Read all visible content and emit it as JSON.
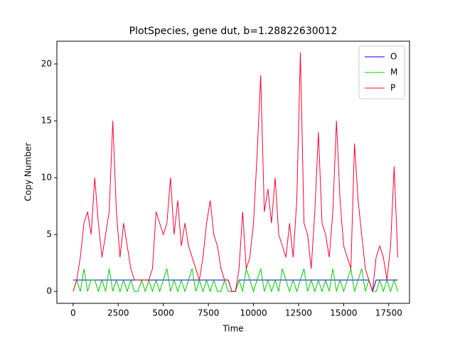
{
  "chart_data": {
    "type": "line",
    "title": "PlotSpecies, gene dut, b=1.28822630012",
    "x_label": "Time",
    "y_label": "Copy Number",
    "x": [
      0,
      200,
      400,
      600,
      800,
      1000,
      1200,
      1400,
      1600,
      1800,
      2000,
      2200,
      2400,
      2600,
      2800,
      3000,
      3200,
      3400,
      3600,
      3800,
      4000,
      4200,
      4400,
      4600,
      4800,
      5000,
      5200,
      5400,
      5600,
      5800,
      6000,
      6200,
      6400,
      6600,
      6800,
      7000,
      7200,
      7400,
      7600,
      7800,
      8000,
      8200,
      8400,
      8600,
      8800,
      9000,
      9200,
      9400,
      9600,
      9800,
      10000,
      10200,
      10400,
      10600,
      10800,
      11000,
      11200,
      11400,
      11600,
      11800,
      12000,
      12200,
      12400,
      12600,
      12800,
      13000,
      13200,
      13400,
      13600,
      13800,
      14000,
      14200,
      14400,
      14600,
      14800,
      15000,
      15200,
      15400,
      15600,
      15800,
      16000,
      16200,
      16400,
      16600,
      16800,
      17000,
      17200,
      17400,
      17600,
      17800,
      18000
    ],
    "series": [
      {
        "name": "O",
        "color": "#0000ff",
        "values": [
          1,
          1,
          1,
          1,
          1,
          1,
          1,
          1,
          1,
          1,
          1,
          1,
          1,
          1,
          1,
          1,
          1,
          1,
          1,
          1,
          1,
          1,
          1,
          1,
          1,
          1,
          1,
          1,
          1,
          1,
          1,
          1,
          1,
          1,
          1,
          1,
          1,
          1,
          1,
          1,
          1,
          1,
          1,
          1,
          0,
          0,
          1,
          1,
          1,
          1,
          1,
          1,
          1,
          1,
          1,
          1,
          1,
          1,
          1,
          1,
          1,
          1,
          1,
          1,
          1,
          1,
          1,
          1,
          1,
          1,
          1,
          1,
          1,
          1,
          1,
          1,
          1,
          1,
          1,
          1,
          1,
          1,
          1,
          0,
          1,
          1,
          1,
          1,
          1,
          1,
          1
        ]
      },
      {
        "name": "M",
        "color": "#00cc00",
        "values": [
          0,
          1,
          0,
          2,
          0,
          1,
          1,
          0,
          1,
          0,
          2,
          0,
          1,
          0,
          1,
          0,
          1,
          0,
          0,
          1,
          0,
          1,
          0,
          1,
          0,
          1,
          2,
          0,
          1,
          0,
          1,
          0,
          1,
          2,
          0,
          1,
          0,
          1,
          0,
          1,
          0,
          0,
          1,
          0,
          0,
          0,
          1,
          0,
          2,
          1,
          0,
          1,
          2,
          0,
          1,
          0,
          1,
          0,
          2,
          1,
          0,
          1,
          0,
          1,
          2,
          0,
          1,
          0,
          1,
          0,
          1,
          0,
          2,
          0,
          1,
          0,
          1,
          2,
          0,
          1,
          2,
          0,
          1,
          0,
          0,
          1,
          0,
          1,
          0,
          1,
          0
        ]
      },
      {
        "name": "P",
        "color": "#ff0033",
        "values": [
          0,
          1,
          3,
          6,
          7,
          5,
          10,
          6,
          3,
          5,
          7,
          15,
          7,
          3,
          6,
          4,
          2,
          1,
          1,
          1,
          1,
          1,
          2,
          7,
          6,
          5,
          6,
          10,
          5,
          8,
          4,
          6,
          4,
          3,
          2,
          1,
          3,
          6,
          8,
          5,
          4,
          2,
          1,
          1,
          0,
          0,
          2,
          7,
          2,
          3,
          6,
          12,
          19,
          7,
          9,
          6,
          10,
          5,
          4,
          3,
          6,
          3,
          8,
          21,
          6,
          5,
          2,
          7,
          14,
          6,
          5,
          3,
          7,
          15,
          8,
          4,
          3,
          2,
          13,
          8,
          5,
          2,
          1,
          0,
          3,
          4,
          3,
          1,
          4,
          11,
          3
        ]
      }
    ],
    "xlim": [
      -900,
      18650
    ],
    "ylim": [
      -1.05,
      22.0
    ],
    "xticks": [
      0,
      2500,
      5000,
      7500,
      10000,
      12500,
      15000,
      17500
    ],
    "yticks": [
      0,
      5,
      10,
      15,
      20
    ],
    "legend": "upper right"
  }
}
